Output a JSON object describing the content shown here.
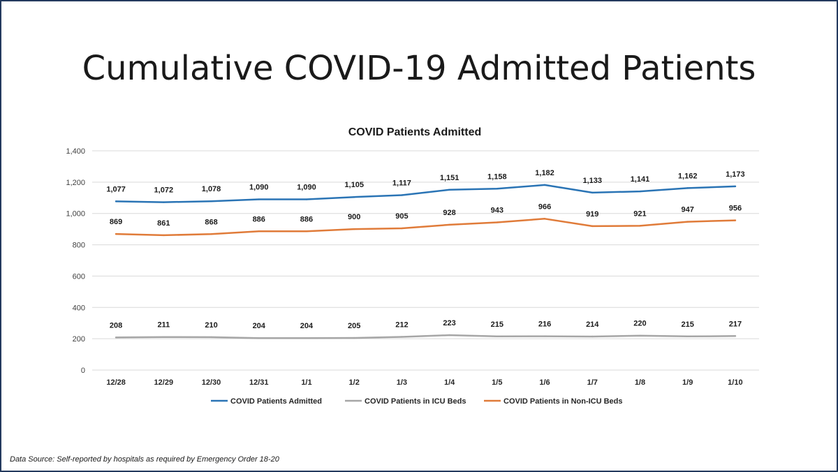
{
  "slide": {
    "title": "Cumulative COVID-19 Admitted Patients",
    "source_note": "Data Source: Self-reported by hospitals as required by Emergency Order 18-20"
  },
  "chart_data": {
    "type": "line",
    "title": "COVID Patients Admitted",
    "xlabel": "",
    "ylabel": "",
    "categories": [
      "12/28",
      "12/29",
      "12/30",
      "12/31",
      "1/1",
      "1/2",
      "1/3",
      "1/4",
      "1/5",
      "1/6",
      "1/7",
      "1/8",
      "1/9",
      "1/10"
    ],
    "ylim": [
      0,
      1400
    ],
    "yticks": [
      0,
      200,
      400,
      600,
      800,
      1000,
      1200,
      1400
    ],
    "ytick_labels": [
      "0",
      "200",
      "400",
      "600",
      "800",
      "1,000",
      "1,200",
      "1,400"
    ],
    "grid": true,
    "legend_position": "bottom",
    "data_labels": true,
    "series": [
      {
        "name": "COVID Patients Admitted",
        "color": "#2a74b5",
        "values": [
          1077,
          1072,
          1078,
          1090,
          1090,
          1105,
          1117,
          1151,
          1158,
          1182,
          1133,
          1141,
          1162,
          1173
        ],
        "labels": [
          "1,077",
          "1,072",
          "1,078",
          "1,090",
          "1,090",
          "1,105",
          "1,117",
          "1,151",
          "1,158",
          "1,182",
          "1,133",
          "1,141",
          "1,162",
          "1,173"
        ]
      },
      {
        "name": "COVID Patients in ICU Beds",
        "color": "#a6a6a6",
        "values": [
          208,
          211,
          210,
          204,
          204,
          205,
          212,
          223,
          215,
          216,
          214,
          220,
          215,
          217
        ],
        "labels": [
          "208",
          "211",
          "210",
          "204",
          "204",
          "205",
          "212",
          "223",
          "215",
          "216",
          "214",
          "220",
          "215",
          "217"
        ]
      },
      {
        "name": "COVID Patients in Non-ICU Beds",
        "color": "#e07b39",
        "values": [
          869,
          861,
          868,
          886,
          886,
          900,
          905,
          928,
          943,
          966,
          919,
          921,
          947,
          956
        ],
        "labels": [
          "869",
          "861",
          "868",
          "886",
          "886",
          "900",
          "905",
          "928",
          "943",
          "966",
          "919",
          "921",
          "947",
          "956"
        ]
      }
    ]
  }
}
